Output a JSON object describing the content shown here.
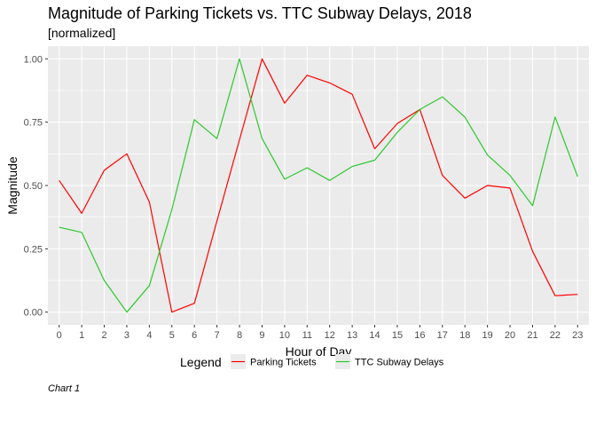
{
  "chart_data": {
    "type": "line",
    "title": "Magnitude of Parking Tickets vs. TTC Subway Delays, 2018",
    "subtitle": "[normalized]",
    "caption": "Chart 1",
    "xlabel": "Hour of Day",
    "ylabel": "Magnitude",
    "x": [
      0,
      1,
      2,
      3,
      4,
      5,
      6,
      7,
      8,
      9,
      10,
      11,
      12,
      13,
      14,
      15,
      16,
      17,
      18,
      19,
      20,
      21,
      22,
      23
    ],
    "x_ticks": [
      "0",
      "1",
      "2",
      "3",
      "4",
      "5",
      "6",
      "7",
      "8",
      "9",
      "10",
      "11",
      "12",
      "13",
      "14",
      "15",
      "16",
      "17",
      "18",
      "19",
      "20",
      "21",
      "22",
      "23"
    ],
    "xlim": [
      -0.5,
      23.5
    ],
    "ylim": [
      -0.05,
      1.05
    ],
    "y_ticks": [
      0,
      0.25,
      0.5,
      0.75,
      1.0
    ],
    "y_tick_labels": [
      "0.00",
      "0.25",
      "0.50",
      "0.75",
      "1.00"
    ],
    "grid": true,
    "legend_title": "Legend",
    "legend_position": "bottom",
    "series": [
      {
        "name": "Parking Tickets",
        "color": "#ff0000",
        "values": [
          0.52,
          0.39,
          0.56,
          0.625,
          0.435,
          0.0,
          0.035,
          0.36,
          0.68,
          1.0,
          0.825,
          0.935,
          0.905,
          0.86,
          0.645,
          0.745,
          0.8,
          0.54,
          0.45,
          0.5,
          0.49,
          0.24,
          0.065,
          0.07
        ]
      },
      {
        "name": "TTC Subway Delays",
        "color": "#2ec72e",
        "values": [
          0.335,
          0.315,
          0.125,
          0.0,
          0.105,
          0.405,
          0.76,
          0.685,
          1.0,
          0.685,
          0.525,
          0.57,
          0.52,
          0.575,
          0.6,
          0.71,
          0.8,
          0.85,
          0.77,
          0.62,
          0.54,
          0.42,
          0.77,
          0.535
        ]
      }
    ],
    "colors": {
      "panel": "#ebebeb",
      "grid": "#ffffff"
    }
  }
}
